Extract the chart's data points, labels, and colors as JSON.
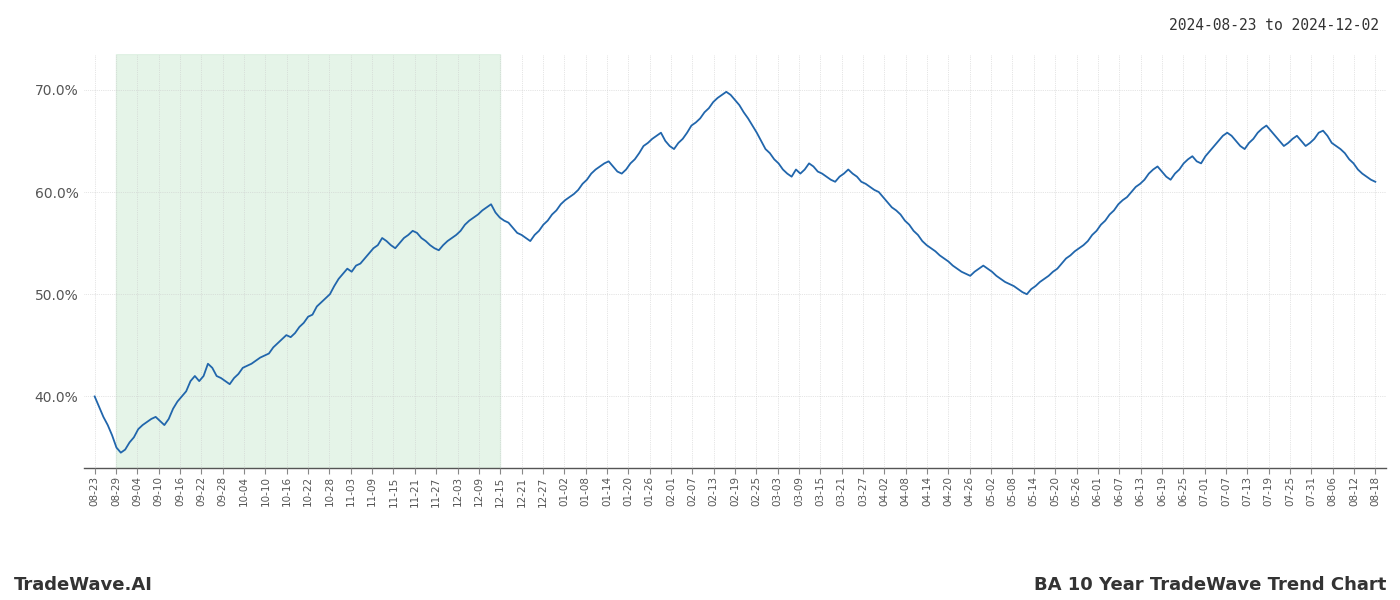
{
  "title_top_right": "2024-08-23 to 2024-12-02",
  "footer_left": "TradeWave.AI",
  "footer_right": "BA 10 Year TradeWave Trend Chart",
  "line_color": "#2166ac",
  "line_width": 1.3,
  "shade_color": "#d4edda",
  "shade_alpha": 0.6,
  "background_color": "#ffffff",
  "grid_color": "#cccccc",
  "ylim": [
    0.33,
    0.735
  ],
  "yticks": [
    0.4,
    0.5,
    0.6,
    0.7
  ],
  "ytick_labels": [
    "40.0%",
    "50.0%",
    "60.0%",
    "70.0%"
  ],
  "x_labels": [
    "08-23",
    "08-29",
    "09-04",
    "09-10",
    "09-16",
    "09-22",
    "09-28",
    "10-04",
    "10-10",
    "10-16",
    "10-22",
    "10-28",
    "11-03",
    "11-09",
    "11-15",
    "11-21",
    "11-27",
    "12-03",
    "12-09",
    "12-15",
    "12-21",
    "12-27",
    "01-02",
    "01-08",
    "01-14",
    "01-20",
    "01-26",
    "02-01",
    "02-07",
    "02-13",
    "02-19",
    "02-25",
    "03-03",
    "03-09",
    "03-15",
    "03-21",
    "03-27",
    "04-02",
    "04-08",
    "04-14",
    "04-20",
    "04-26",
    "05-02",
    "05-08",
    "05-14",
    "05-20",
    "05-26",
    "06-01",
    "06-07",
    "06-13",
    "06-19",
    "06-25",
    "07-01",
    "07-07",
    "07-13",
    "07-19",
    "07-25",
    "07-31",
    "08-06",
    "08-12",
    "08-18"
  ],
  "shade_label_start": "08-29",
  "shade_label_end": "12-15",
  "y_values": [
    0.4,
    0.39,
    0.38,
    0.372,
    0.362,
    0.35,
    0.345,
    0.348,
    0.355,
    0.36,
    0.368,
    0.372,
    0.375,
    0.378,
    0.38,
    0.376,
    0.372,
    0.378,
    0.388,
    0.395,
    0.4,
    0.405,
    0.415,
    0.42,
    0.415,
    0.42,
    0.432,
    0.428,
    0.42,
    0.418,
    0.415,
    0.412,
    0.418,
    0.422,
    0.428,
    0.43,
    0.432,
    0.435,
    0.438,
    0.44,
    0.442,
    0.448,
    0.452,
    0.456,
    0.46,
    0.458,
    0.462,
    0.468,
    0.472,
    0.478,
    0.48,
    0.488,
    0.492,
    0.496,
    0.5,
    0.508,
    0.515,
    0.52,
    0.525,
    0.522,
    0.528,
    0.53,
    0.535,
    0.54,
    0.545,
    0.548,
    0.555,
    0.552,
    0.548,
    0.545,
    0.55,
    0.555,
    0.558,
    0.562,
    0.56,
    0.555,
    0.552,
    0.548,
    0.545,
    0.543,
    0.548,
    0.552,
    0.555,
    0.558,
    0.562,
    0.568,
    0.572,
    0.575,
    0.578,
    0.582,
    0.585,
    0.588,
    0.58,
    0.575,
    0.572,
    0.57,
    0.565,
    0.56,
    0.558,
    0.555,
    0.552,
    0.558,
    0.562,
    0.568,
    0.572,
    0.578,
    0.582,
    0.588,
    0.592,
    0.595,
    0.598,
    0.602,
    0.608,
    0.612,
    0.618,
    0.622,
    0.625,
    0.628,
    0.63,
    0.625,
    0.62,
    0.618,
    0.622,
    0.628,
    0.632,
    0.638,
    0.645,
    0.648,
    0.652,
    0.655,
    0.658,
    0.65,
    0.645,
    0.642,
    0.648,
    0.652,
    0.658,
    0.665,
    0.668,
    0.672,
    0.678,
    0.682,
    0.688,
    0.692,
    0.695,
    0.698,
    0.695,
    0.69,
    0.685,
    0.678,
    0.672,
    0.665,
    0.658,
    0.65,
    0.642,
    0.638,
    0.632,
    0.628,
    0.622,
    0.618,
    0.615,
    0.622,
    0.618,
    0.622,
    0.628,
    0.625,
    0.62,
    0.618,
    0.615,
    0.612,
    0.61,
    0.615,
    0.618,
    0.622,
    0.618,
    0.615,
    0.61,
    0.608,
    0.605,
    0.602,
    0.6,
    0.595,
    0.59,
    0.585,
    0.582,
    0.578,
    0.572,
    0.568,
    0.562,
    0.558,
    0.552,
    0.548,
    0.545,
    0.542,
    0.538,
    0.535,
    0.532,
    0.528,
    0.525,
    0.522,
    0.52,
    0.518,
    0.522,
    0.525,
    0.528,
    0.525,
    0.522,
    0.518,
    0.515,
    0.512,
    0.51,
    0.508,
    0.505,
    0.502,
    0.5,
    0.505,
    0.508,
    0.512,
    0.515,
    0.518,
    0.522,
    0.525,
    0.53,
    0.535,
    0.538,
    0.542,
    0.545,
    0.548,
    0.552,
    0.558,
    0.562,
    0.568,
    0.572,
    0.578,
    0.582,
    0.588,
    0.592,
    0.595,
    0.6,
    0.605,
    0.608,
    0.612,
    0.618,
    0.622,
    0.625,
    0.62,
    0.615,
    0.612,
    0.618,
    0.622,
    0.628,
    0.632,
    0.635,
    0.63,
    0.628,
    0.635,
    0.64,
    0.645,
    0.65,
    0.655,
    0.658,
    0.655,
    0.65,
    0.645,
    0.642,
    0.648,
    0.652,
    0.658,
    0.662,
    0.665,
    0.66,
    0.655,
    0.65,
    0.645,
    0.648,
    0.652,
    0.655,
    0.65,
    0.645,
    0.648,
    0.652,
    0.658,
    0.66,
    0.655,
    0.648,
    0.645,
    0.642,
    0.638,
    0.632,
    0.628,
    0.622,
    0.618,
    0.615,
    0.612,
    0.61
  ]
}
